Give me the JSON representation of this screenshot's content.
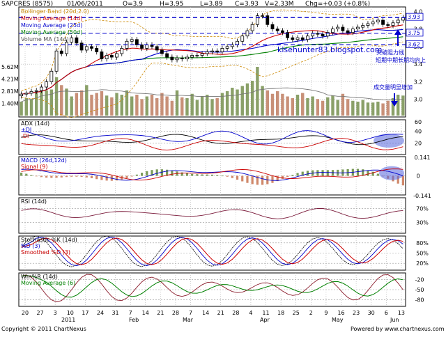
{
  "header": {
    "symbol": "SAPCRES (8575)",
    "date": "01/06/2011",
    "open": "O=3.9",
    "high": "H=3.95",
    "low": "L=3.89",
    "close": "C=3.93",
    "volume": "V=2.33M",
    "change": "Chg=+0.03 (+0.8%)"
  },
  "footer": {
    "copyright": "Copyright © 2011 ChartNexus",
    "powered": "Powered by www.chartnexus.com"
  },
  "colors": {
    "up": "#2e7d32",
    "down": "#c0392b",
    "grid": "#888888",
    "ma14": "#cc0000",
    "ma25": "#0000cc",
    "ma50": "#008000",
    "bollinger": "#cc8800",
    "annotation": "#0000cc"
  },
  "chart_data": [
    {
      "type": "candlestick",
      "panel": "price",
      "legend": [
        "Bollinger Band (20d,2.0)",
        "Moving Average (14d)",
        "Moving Average (25d)",
        "Moving Average (50d)",
        "Volume MA (14d)"
      ],
      "yticks": [
        "4.0",
        "3.8",
        "3.6",
        "3.4",
        "3.2",
        "3.0"
      ],
      "volume_ticks": [
        "5.62M",
        "4.21M",
        "2.81M",
        "1.40M"
      ],
      "ylim": [
        2.8,
        4.05
      ],
      "close": [
        3.06,
        3.07,
        3.09,
        3.1,
        3.14,
        3.2,
        3.32,
        3.55,
        3.52,
        3.65,
        3.7,
        3.64,
        3.56,
        3.6,
        3.58,
        3.54,
        3.46,
        3.5,
        3.48,
        3.52,
        3.58,
        3.66,
        3.68,
        3.62,
        3.58,
        3.62,
        3.6,
        3.56,
        3.52,
        3.48,
        3.45,
        3.47,
        3.46,
        3.48,
        3.5,
        3.5,
        3.52,
        3.54,
        3.55,
        3.54,
        3.58,
        3.6,
        3.62,
        3.66,
        3.72,
        3.78,
        3.85,
        3.95,
        3.95,
        3.85,
        3.8,
        3.78,
        3.76,
        3.7,
        3.68,
        3.7,
        3.68,
        3.72,
        3.75,
        3.74,
        3.72,
        3.76,
        3.8,
        3.82,
        3.78,
        3.76,
        3.8,
        3.82,
        3.84,
        3.86,
        3.88,
        3.9,
        3.85,
        3.84,
        3.87,
        3.9,
        3.93
      ],
      "volume": [
        1.6,
        2.0,
        1.9,
        2.6,
        3.2,
        2.9,
        3.0,
        4.4,
        3.5,
        3.1,
        2.2,
        2.6,
        2.9,
        3.5,
        2.4,
        2.6,
        2.8,
        2.3,
        2.1,
        2.6,
        2.4,
        2.9,
        2.2,
        2.4,
        1.9,
        2.2,
        2.4,
        2.0,
        2.6,
        2.2,
        1.7,
        2.9,
        2.1,
        2.0,
        2.5,
        1.8,
        2.2,
        2.4,
        1.9,
        2.0,
        2.6,
        2.8,
        3.2,
        3.0,
        3.4,
        3.7,
        4.0,
        5.6,
        3.4,
        2.9,
        2.5,
        2.8,
        2.5,
        2.2,
        2.0,
        2.4,
        2.6,
        2.0,
        2.2,
        1.9,
        1.7,
        2.1,
        2.3,
        1.8,
        2.5,
        1.9,
        1.7,
        1.6,
        1.8,
        1.5,
        1.5,
        1.6,
        1.4,
        1.7,
        2.0,
        2.4,
        2.3
      ],
      "annotations": [
        "3.93",
        "3.75",
        "3.62",
        "klsehunter83.blogspot.com",
        "突破阻力线",
        "短期中期长期均向上",
        "成交量明显增加"
      ]
    },
    {
      "type": "line",
      "panel": "adx",
      "legend": [
        "ADX (14d)",
        "+DI",
        "-DI"
      ],
      "yticks": [
        "60",
        "40",
        "20"
      ],
      "ylim": [
        0,
        60
      ]
    },
    {
      "type": "line",
      "panel": "macd",
      "legend": [
        "MACD (26d,12d)",
        "Signal (9)"
      ],
      "yticks": [
        "0.141",
        "0",
        "-0.141"
      ],
      "ylim": [
        -0.141,
        0.141
      ]
    },
    {
      "type": "line",
      "panel": "rsi",
      "legend": [
        "RSI (14d)"
      ],
      "yticks": [
        "70%",
        "30%"
      ],
      "ylim": [
        0,
        100
      ]
    },
    {
      "type": "line",
      "panel": "stochastic",
      "legend": [
        "Stochastic %K (14d)",
        "%D (3)",
        "Smoothed %D (3)"
      ],
      "yticks": [
        "80%",
        "50%",
        "20%"
      ],
      "ylim": [
        0,
        100
      ]
    },
    {
      "type": "line",
      "panel": "williams",
      "legend": [
        "Wm%R (14d)",
        "Moving Average (6)"
      ],
      "yticks": [
        "-20",
        "-50",
        "-80"
      ],
      "ylim": [
        -100,
        0
      ]
    },
    {
      "type": "axis",
      "panel": "dates",
      "xticks": [
        "20",
        "27",
        "3",
        "10",
        "17",
        "24",
        "31",
        "7",
        "14",
        "21",
        "28",
        "7",
        "14",
        "21",
        "28",
        "4",
        "11",
        "18",
        "25",
        "2",
        "9",
        "16",
        "23",
        "30",
        "6",
        "13"
      ],
      "months": [
        "2011",
        "Feb",
        "Mar",
        "Apr",
        "May",
        "Jun"
      ]
    }
  ]
}
